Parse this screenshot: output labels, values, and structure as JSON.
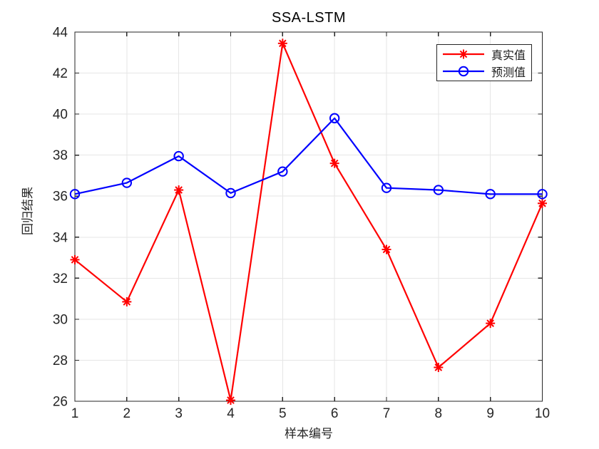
{
  "figure": {
    "background": "#ffffff"
  },
  "chart_data": {
    "type": "line",
    "title": "SSA-LSTM",
    "xlabel": "样本编号",
    "ylabel": "回归结果",
    "x": [
      1,
      2,
      3,
      4,
      5,
      6,
      7,
      8,
      9,
      10
    ],
    "xlim": [
      1,
      10
    ],
    "ylim": [
      26,
      44
    ],
    "xticks": [
      1,
      2,
      3,
      4,
      5,
      6,
      7,
      8,
      9,
      10
    ],
    "yticks": [
      26,
      28,
      30,
      32,
      34,
      36,
      38,
      40,
      42,
      44
    ],
    "grid": true,
    "legend_position": "top-right",
    "axis_color": "#262626",
    "grid_color": "#e6e6e6",
    "series": [
      {
        "name": "真实值",
        "color": "#ff0000",
        "marker": "asterisk",
        "values": [
          32.9,
          30.85,
          36.3,
          26.05,
          43.45,
          37.6,
          33.4,
          27.65,
          29.8,
          35.65
        ]
      },
      {
        "name": "预测值",
        "color": "#0000ff",
        "marker": "circle",
        "values": [
          36.1,
          36.65,
          37.95,
          36.15,
          37.2,
          39.8,
          36.4,
          36.3,
          36.1,
          36.1
        ]
      }
    ]
  }
}
